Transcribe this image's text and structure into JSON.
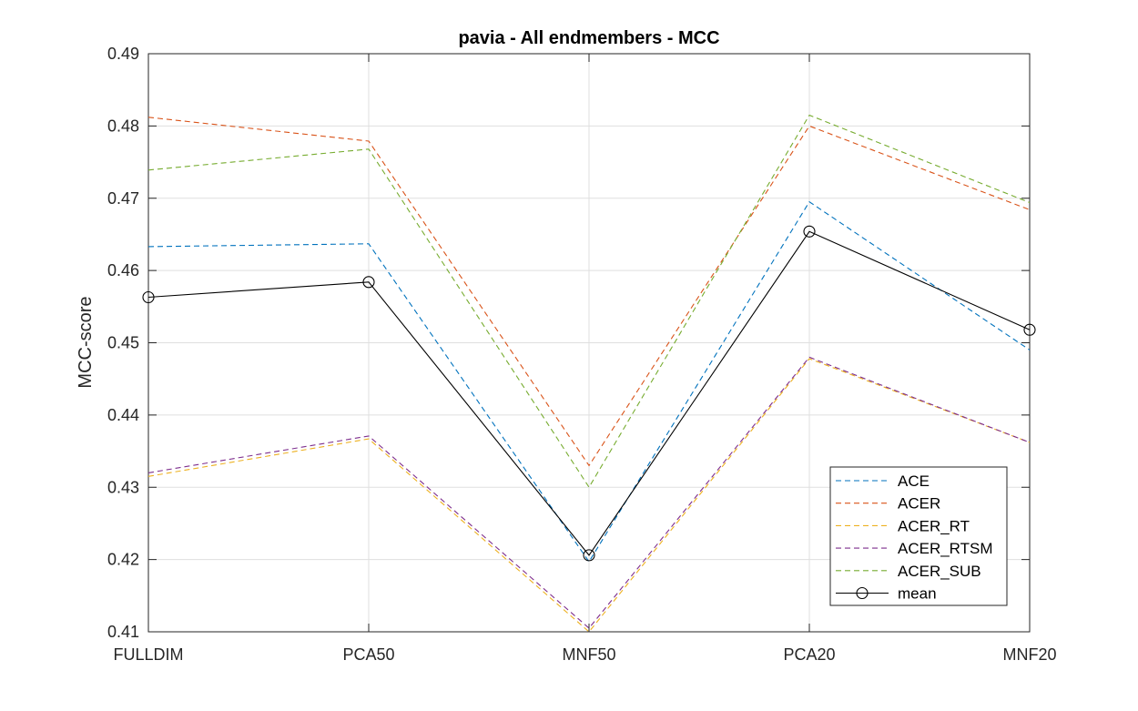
{
  "chart_data": {
    "type": "line",
    "title": "pavia - All endmembers - MCC",
    "xlabel": "",
    "ylabel": "MCC-score",
    "categories": [
      "FULLDIM",
      "PCA50",
      "MNF50",
      "PCA20",
      "MNF20"
    ],
    "ylim": [
      0.41,
      0.49
    ],
    "yticks": [
      "0.41",
      "0.42",
      "0.43",
      "0.44",
      "0.45",
      "0.46",
      "0.47",
      "0.48",
      "0.49"
    ],
    "grid": true,
    "legend_position": "bottom-right",
    "series": [
      {
        "name": "ACE",
        "values": [
          0.4633,
          0.4637,
          0.4197,
          0.4695,
          0.449
        ],
        "color": "#0072BD",
        "style": "dashed",
        "marker": "none"
      },
      {
        "name": "ACER",
        "values": [
          0.4812,
          0.4779,
          0.433,
          0.48,
          0.4684
        ],
        "color": "#D95319",
        "style": "dashed",
        "marker": "none"
      },
      {
        "name": "ACER_RT",
        "values": [
          0.4315,
          0.4367,
          0.41,
          0.4478,
          0.4362
        ],
        "color": "#EDB120",
        "style": "dashed",
        "marker": "none"
      },
      {
        "name": "ACER_RTSM",
        "values": [
          0.432,
          0.4371,
          0.4105,
          0.448,
          0.4362
        ],
        "color": "#7E2F8E",
        "style": "dashed",
        "marker": "none"
      },
      {
        "name": "ACER_SUB",
        "values": [
          0.4739,
          0.4768,
          0.43,
          0.4815,
          0.4694
        ],
        "color": "#77AC30",
        "style": "dashed",
        "marker": "none"
      },
      {
        "name": "mean",
        "values": [
          0.4563,
          0.4584,
          0.4206,
          0.4654,
          0.4518
        ],
        "color": "#000000",
        "style": "solid",
        "marker": "circle"
      }
    ]
  }
}
